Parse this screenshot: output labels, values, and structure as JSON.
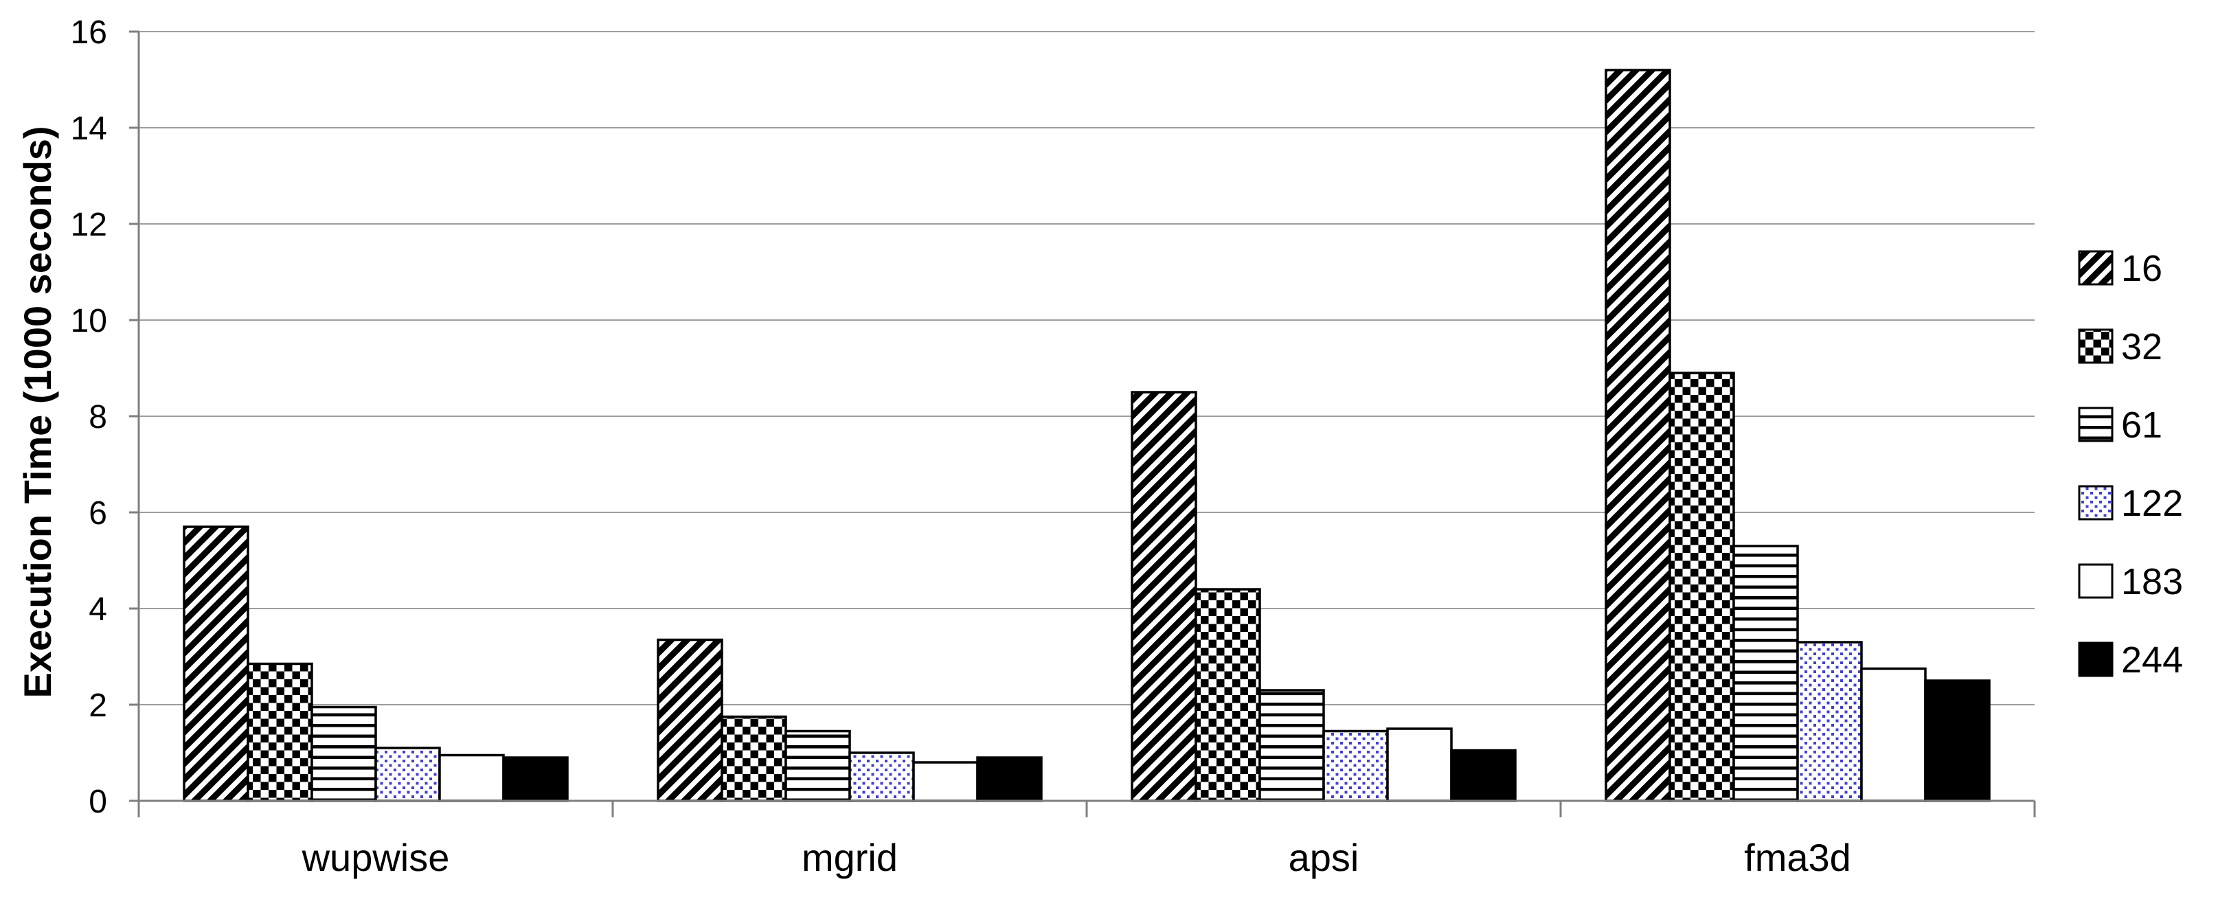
{
  "page": {
    "background": "#ffffff"
  },
  "chart_data": {
    "type": "bar",
    "title": "",
    "xlabel": "",
    "ylabel": "Execution Time (1000 seconds)",
    "ylim": [
      0,
      16
    ],
    "ytick_step": 2,
    "yticks": [
      0,
      2,
      4,
      6,
      8,
      10,
      12,
      14,
      16
    ],
    "grid": true,
    "legend_position": "right",
    "categories": [
      "wupwise",
      "mgrid",
      "apsi",
      "fma3d"
    ],
    "series": [
      {
        "name": "16",
        "pattern": "diagonal-stripes",
        "values": [
          5.7,
          3.35,
          8.5,
          15.2
        ]
      },
      {
        "name": "32",
        "pattern": "checkerboard",
        "values": [
          2.85,
          1.75,
          4.4,
          8.9
        ]
      },
      {
        "name": "61",
        "pattern": "horizontal-lines",
        "values": [
          1.95,
          1.45,
          2.3,
          5.3
        ]
      },
      {
        "name": "122",
        "pattern": "blue-dots",
        "values": [
          1.1,
          1.0,
          1.45,
          3.3
        ]
      },
      {
        "name": "183",
        "pattern": "white",
        "values": [
          0.95,
          0.8,
          1.5,
          2.75
        ]
      },
      {
        "name": "244",
        "pattern": "solid-black",
        "values": [
          0.9,
          0.9,
          1.05,
          2.5
        ]
      }
    ],
    "colors": {
      "bar_stroke": "#000000",
      "dot_blue": "#3f3fd3",
      "gridline": "#9d9d9d",
      "axis": "#7f7f7f",
      "text": "#000000"
    }
  }
}
